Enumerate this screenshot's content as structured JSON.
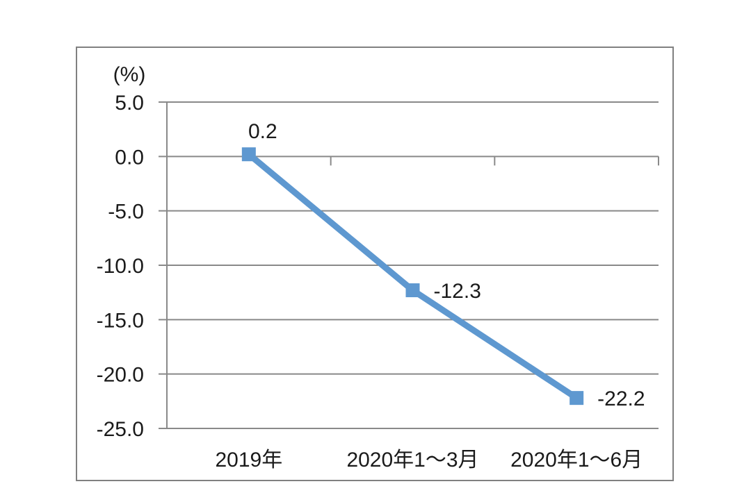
{
  "page": {
    "background_color": "#ffffff"
  },
  "chart_data": {
    "type": "line",
    "title": "",
    "unit_label": "(%)",
    "categories": [
      "2019年",
      "2020年1～3月",
      "2020年1～6月"
    ],
    "series": [
      {
        "values": [
          0.2,
          -12.3,
          -22.2
        ],
        "data_labels": [
          "0.2",
          "-12.3",
          "-22.2"
        ],
        "color": "#5E98D0",
        "marker": "square"
      }
    ],
    "y_axis": {
      "tick_labels": [
        "5.0",
        "0.0",
        "-5.0",
        "-10.0",
        "-15.0",
        "-20.0",
        "-25.0"
      ],
      "tick_values": [
        5,
        0,
        -5,
        -10,
        -15,
        -20,
        -25
      ],
      "min": -25,
      "max": 5
    },
    "x_axis": {
      "baseline_value": 0
    },
    "grid": true,
    "legend_position": "none",
    "colors": {
      "gridline": "#898989",
      "axis": "#898989",
      "border": "#808080",
      "text": "#1a1a1a",
      "plot_background": "#ffffff"
    }
  }
}
